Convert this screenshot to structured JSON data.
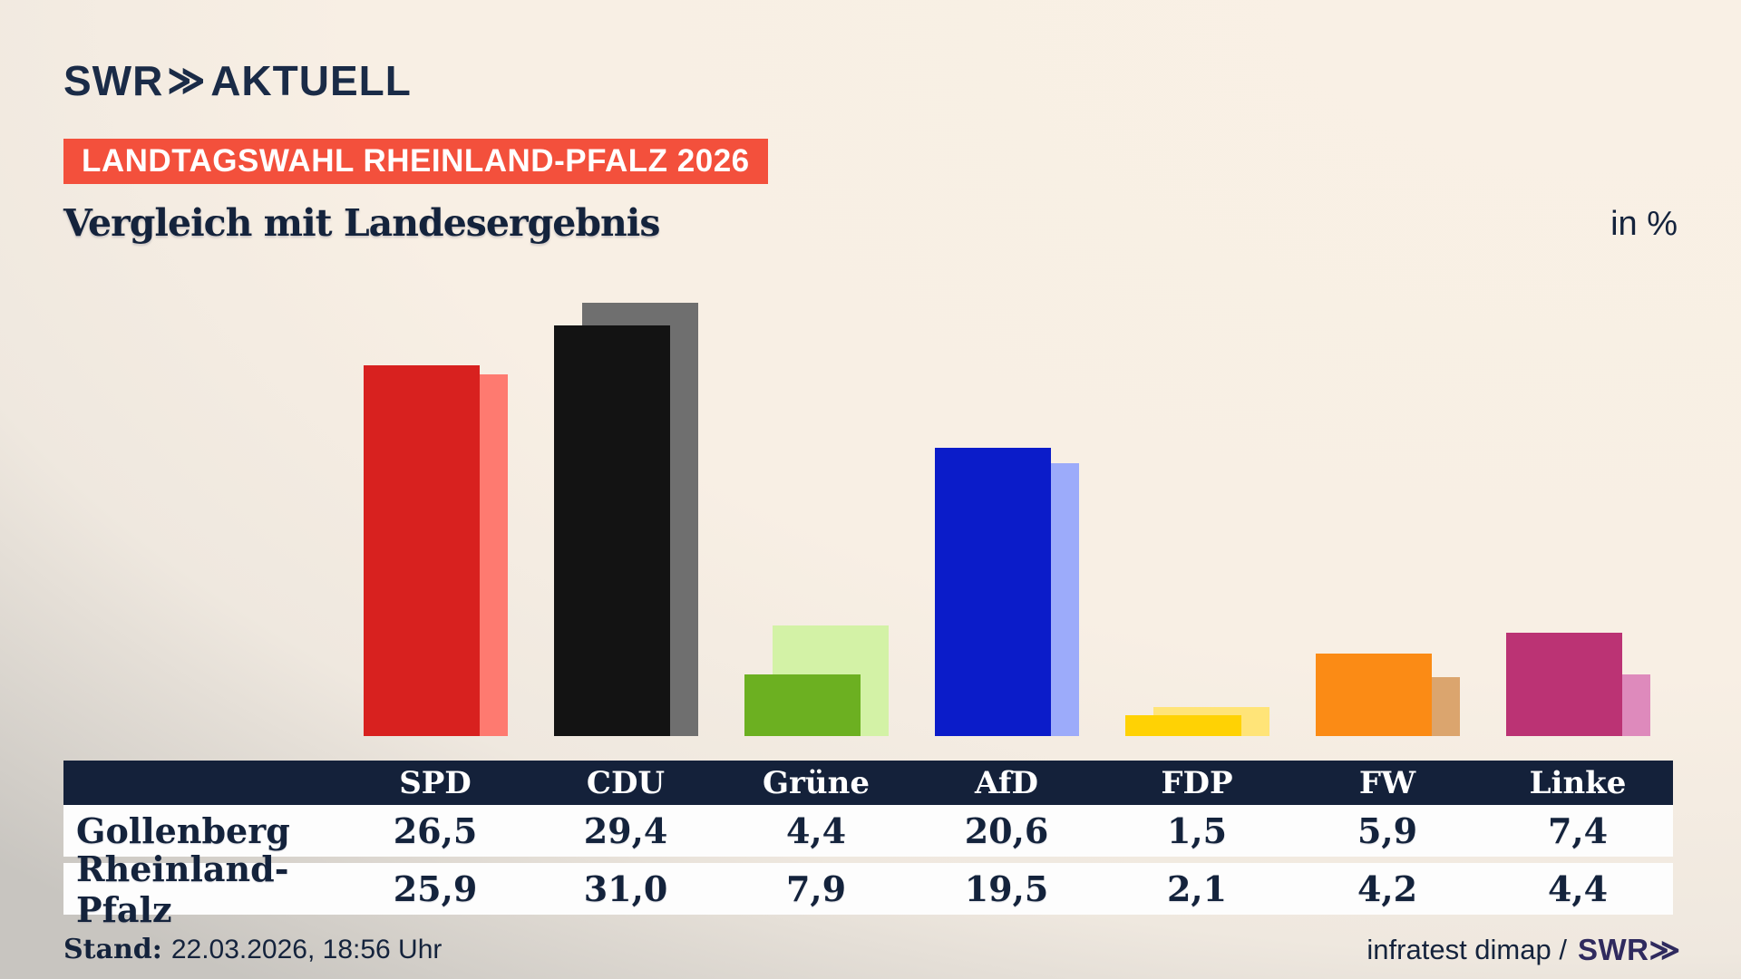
{
  "brand": {
    "logo_main": "SWR",
    "logo_chevrons": "≫",
    "logo_sub": "AKTUELL"
  },
  "badge": {
    "label": "LANDTAGSWAHL RHEINLAND-PFALZ 2026",
    "bg_color": "#f3503c"
  },
  "title": "Vergleich mit Landesergebnis",
  "unit_label": "in %",
  "chart_data": {
    "type": "bar",
    "categories": [
      "SPD",
      "CDU",
      "Grüne",
      "AfD",
      "FDP",
      "FW",
      "Linke"
    ],
    "series": [
      {
        "name": "Gollenberg",
        "values": [
          26.5,
          29.4,
          4.4,
          20.6,
          1.5,
          5.9,
          7.4
        ]
      },
      {
        "name": "Rheinland-Pfalz",
        "values": [
          25.9,
          31.0,
          7.9,
          19.5,
          2.1,
          4.2,
          4.4
        ]
      }
    ],
    "colors": [
      {
        "front": "#d8211f",
        "back": "#fe7a70"
      },
      {
        "front": "#131313",
        "back": "#6f6f6f"
      },
      {
        "front": "#6cb021",
        "back": "#d3f2a6"
      },
      {
        "front": "#0b1cc9",
        "back": "#9cabfa"
      },
      {
        "front": "#ffd204",
        "back": "#ffe478"
      },
      {
        "front": "#fb8b15",
        "back": "#dba56e"
      },
      {
        "front": "#bb3374",
        "back": "#de8abc"
      }
    ],
    "title": "Vergleich mit Landesergebnis",
    "xlabel": "",
    "ylabel": "in %",
    "ylim": [
      0,
      33
    ],
    "grid": false,
    "legend": "table-rows-below",
    "bar_style": "paired-overlap, front bar = Gollenberg, offset back bar = Rheinland-Pfalz"
  },
  "table": {
    "corner_label": "",
    "columns": [
      "SPD",
      "CDU",
      "Grüne",
      "AfD",
      "FDP",
      "FW",
      "Linke"
    ],
    "rows": [
      {
        "label": "Gollenberg",
        "values": [
          "26,5",
          "29,4",
          "4,4",
          "20,6",
          "1,5",
          "5,9",
          "7,4"
        ]
      },
      {
        "label": "Rheinland-Pfalz",
        "values": [
          "25,9",
          "31,0",
          "7,9",
          "19,5",
          "2,1",
          "4,2",
          "4,4"
        ]
      }
    ],
    "header_bg": "#14213a"
  },
  "footer": {
    "stand_label": "Stand:",
    "stand_value": "22.03.2026, 18:56 Uhr",
    "source": "infratest dimap /",
    "source_brand": "SWR",
    "source_brand_chevrons": "≫"
  }
}
